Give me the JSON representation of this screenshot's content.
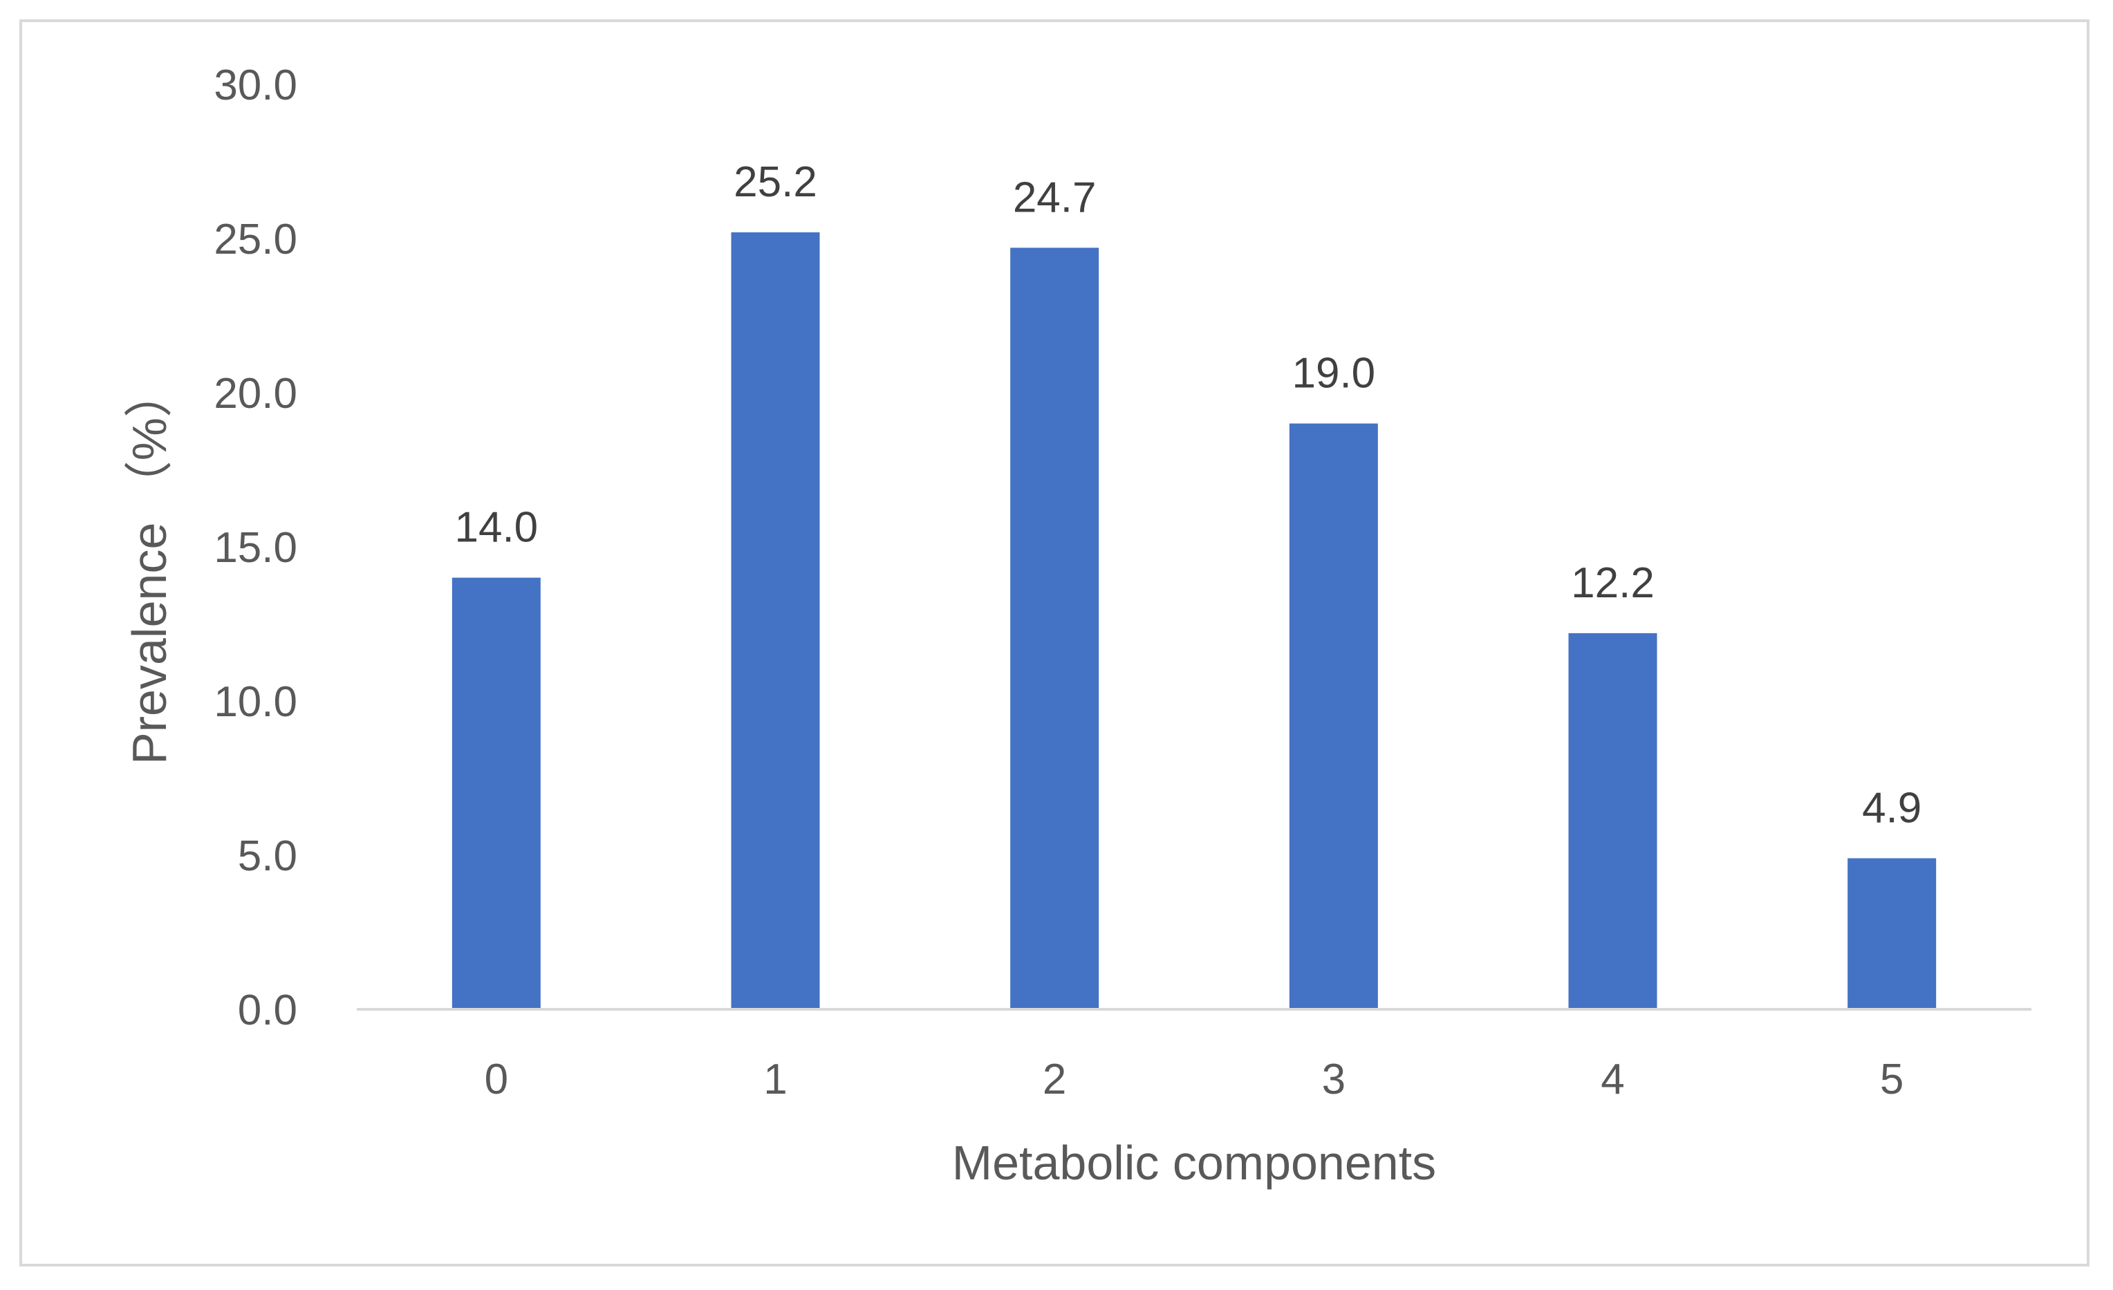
{
  "chart_data": {
    "type": "bar",
    "title": "",
    "categories": [
      "0",
      "1",
      "2",
      "3",
      "4",
      "5"
    ],
    "values": [
      14.0,
      25.2,
      24.7,
      19.0,
      12.2,
      4.9
    ],
    "value_labels": [
      "14.0",
      "25.2",
      "24.7",
      "19.0",
      "12.2",
      "4.9"
    ],
    "xlabel": "Metabolic components",
    "ylabel": "Prevalence （%）",
    "ylim": [
      0,
      30
    ],
    "yticks": [
      0,
      5,
      10,
      15,
      20,
      25,
      30
    ],
    "ytick_labels": [
      "0.0",
      "5.0",
      "10.0",
      "15.0",
      "20.0",
      "25.0",
      "30.0"
    ],
    "grid": false,
    "legend": "none",
    "bar_color": "#4472C4",
    "axis_color": "#d9d9d9"
  }
}
